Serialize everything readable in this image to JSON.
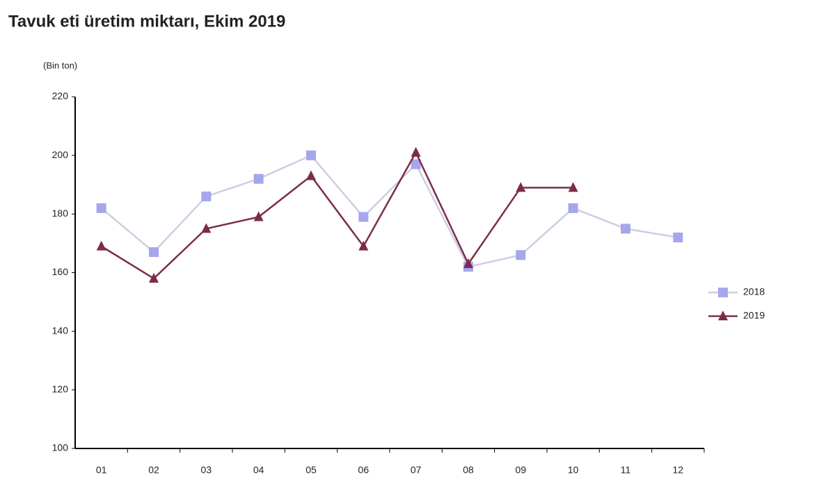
{
  "chart_data": {
    "type": "line",
    "title": "Tavuk eti üretim miktarı, Ekim 2019",
    "y_label": "(Bin ton)",
    "categories": [
      "01",
      "02",
      "03",
      "04",
      "05",
      "06",
      "07",
      "08",
      "09",
      "10",
      "11",
      "12"
    ],
    "series": [
      {
        "name": "2018",
        "color": "#a6a6ec",
        "line_color": "#cdcde6",
        "marker": "square",
        "values": [
          182,
          167,
          186,
          192,
          200,
          179,
          197,
          162,
          166,
          182,
          175,
          172
        ]
      },
      {
        "name": "2019",
        "color": "#7b2d47",
        "line_color": "#7b2d47",
        "marker": "triangle",
        "values": [
          169,
          158,
          175,
          179,
          193,
          169,
          201,
          163,
          189,
          189,
          null,
          null
        ]
      }
    ],
    "ylim": [
      100,
      220
    ],
    "yticks": [
      100,
      120,
      140,
      160,
      180,
      200,
      220
    ],
    "grid": false,
    "legend": "right"
  }
}
